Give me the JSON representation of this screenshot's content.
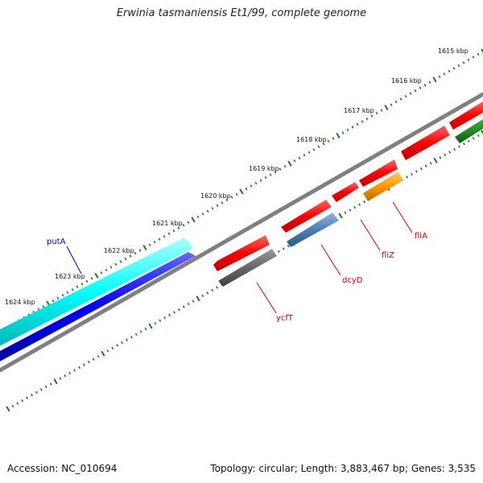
{
  "title": "Erwinia tasmaniensis Et1/99, complete genome",
  "footer": {
    "accession": "Accession: NC_010694",
    "stats": "Topology: circular; Length: 3,883,467 bp; Genes: 3,535"
  },
  "colors": {
    "tick": "#1a7a1a",
    "backbone": "#808080",
    "label_red": "#cc0000",
    "label_blue": "#0000cc"
  },
  "ruler_labels": [
    "1615 kbp",
    "1616 kbp",
    "1617 kbp",
    "1618 kbp",
    "1619 kbp",
    "1620 kbp",
    "1621 kbp",
    "1622 kbp",
    "1623 kbp",
    "1624 kbp"
  ],
  "genes": [
    {
      "name": "putA",
      "track": "cyan-blue",
      "color": "#0000ff",
      "label_color": "#0000cc"
    },
    {
      "name": "ycfT",
      "track": "gray",
      "color": "#666666",
      "label_color": "#cc0000"
    },
    {
      "name": "dcyD",
      "track": "steelblue",
      "color": "#4a7fb5",
      "label_color": "#cc0000"
    },
    {
      "name": "fliZ",
      "track": "red",
      "color": "#ff0000",
      "label_color": "#cc0000"
    },
    {
      "name": "fliA",
      "track": "orange",
      "color": "#ff9900",
      "label_color": "#cc0000"
    }
  ]
}
